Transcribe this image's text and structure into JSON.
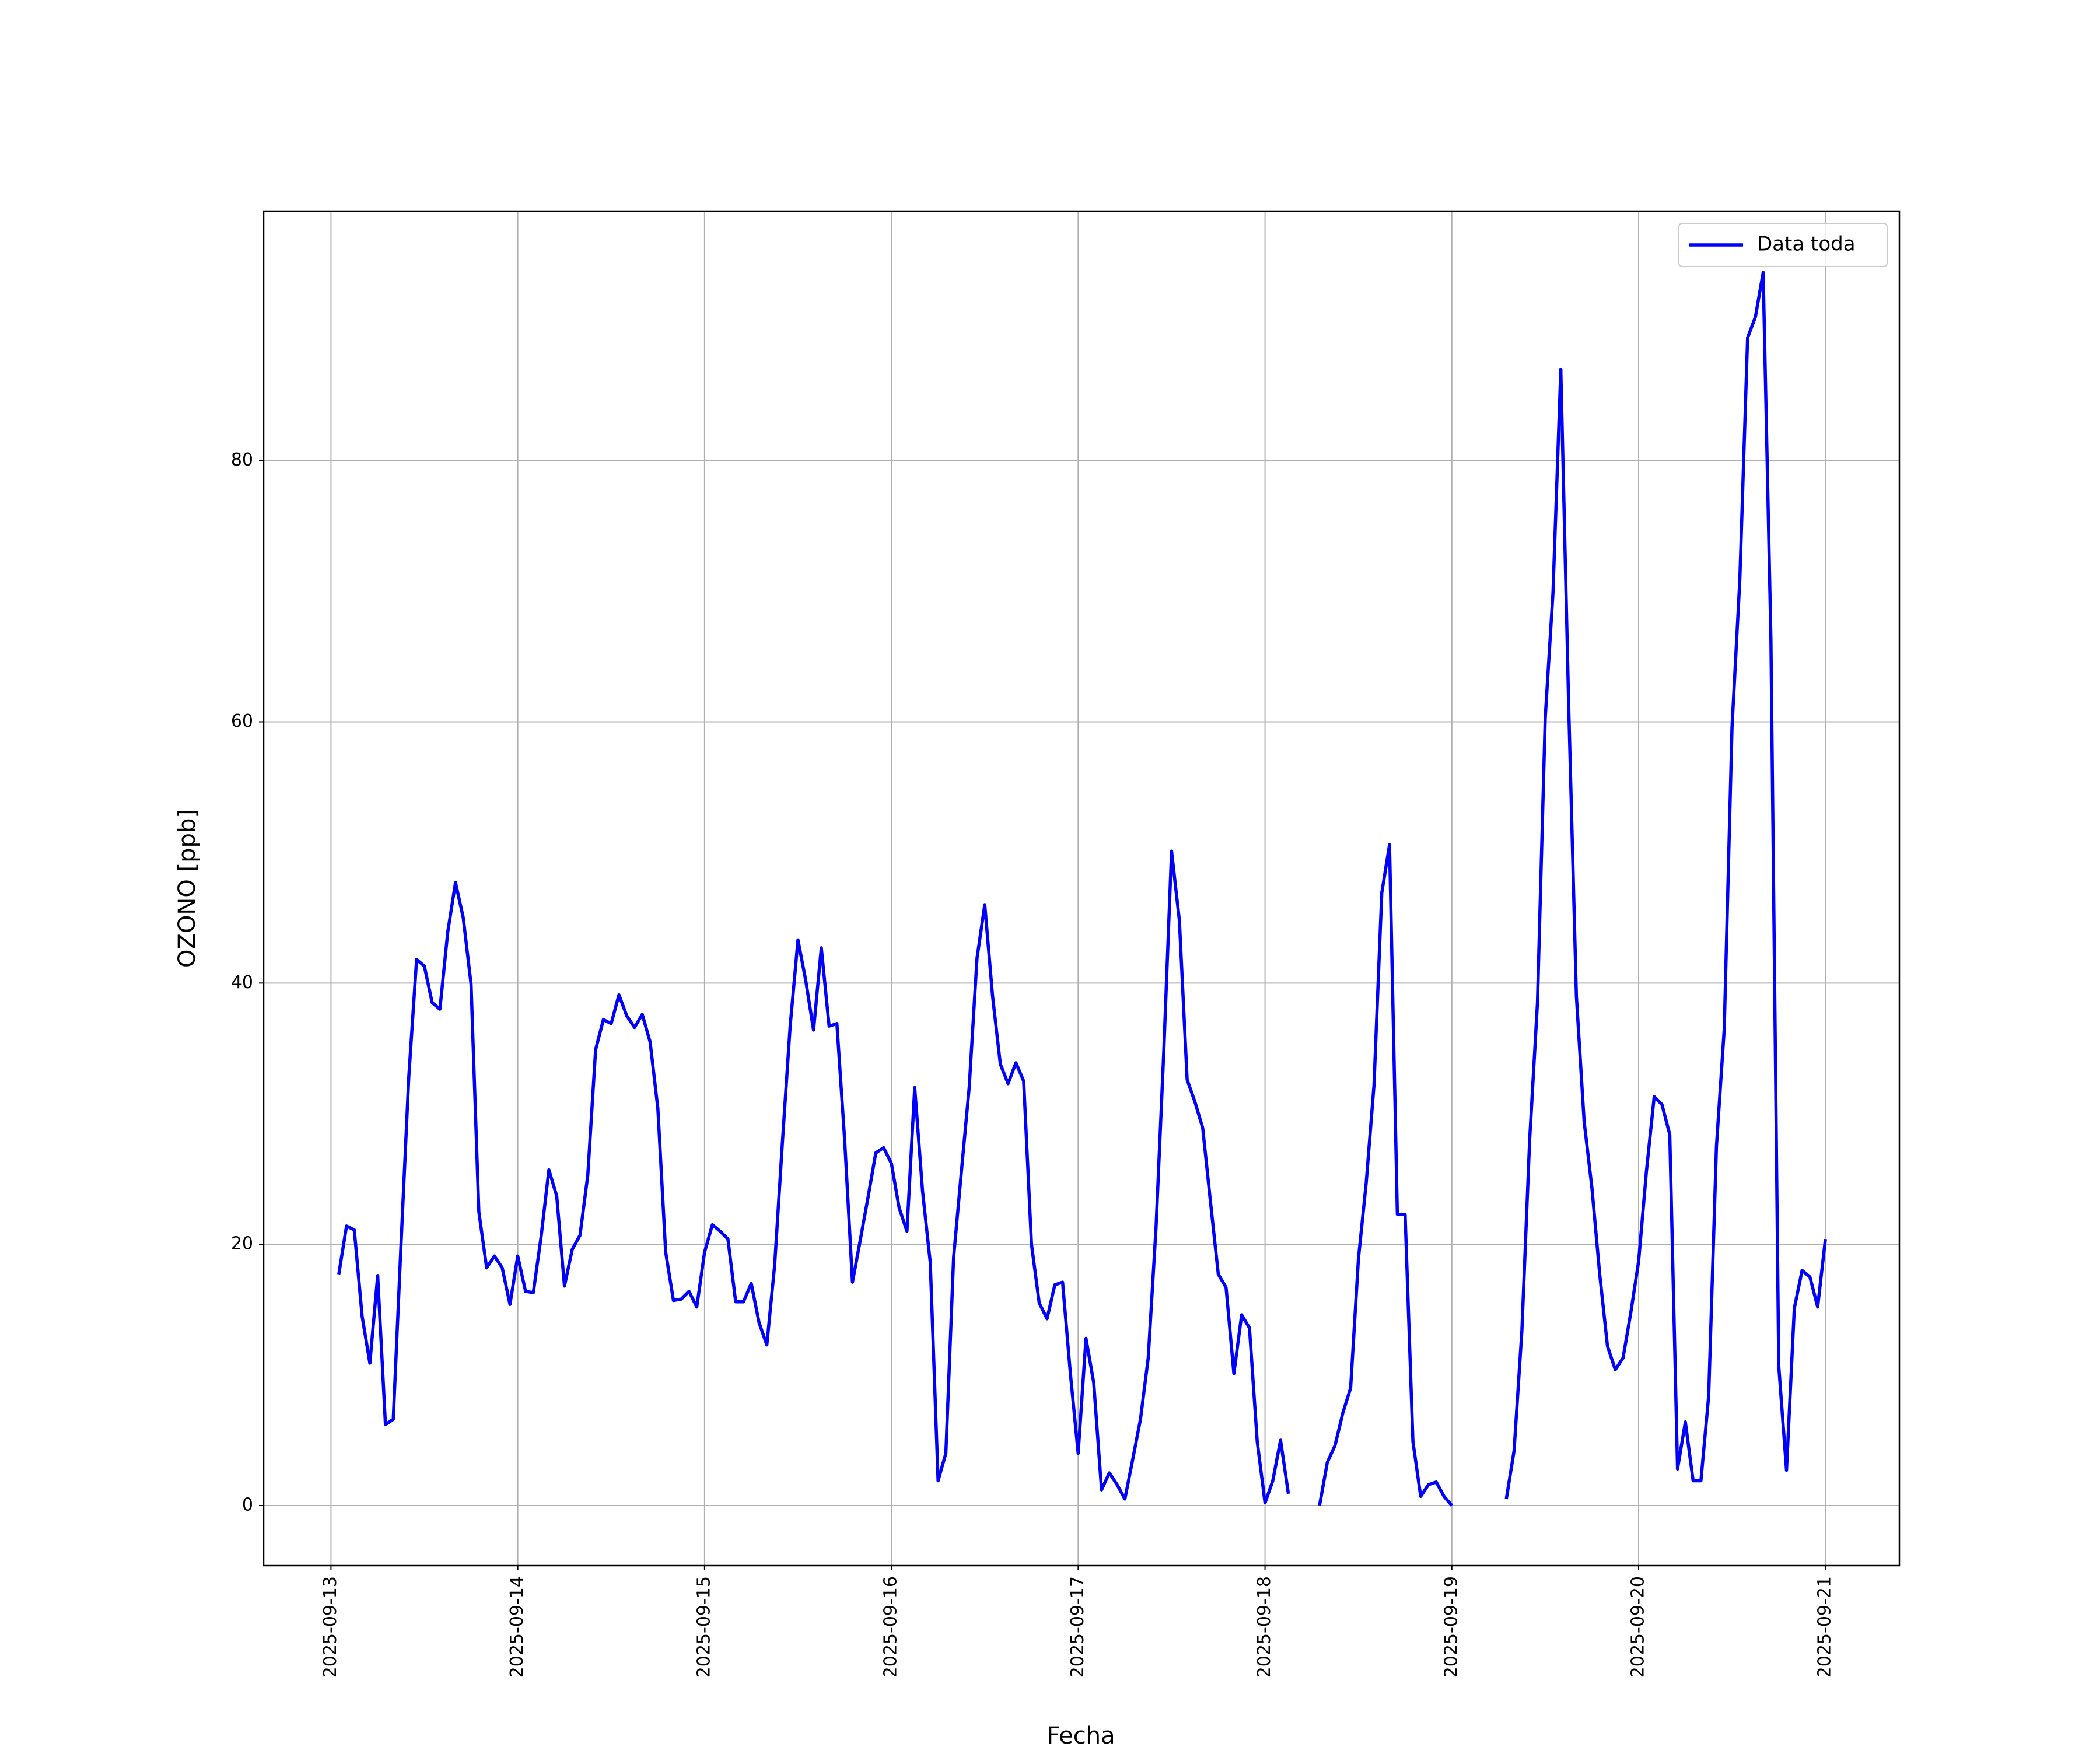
{
  "chart_data": {
    "type": "line",
    "xlabel": "Fecha",
    "ylabel": "OZONO [ppb]",
    "x": [
      "2025-09-13 01:00",
      "2025-09-13 02:00",
      "2025-09-13 03:00",
      "2025-09-13 04:00",
      "2025-09-13 05:00",
      "2025-09-13 06:00",
      "2025-09-13 07:00",
      "2025-09-13 08:00",
      "2025-09-13 09:00",
      "2025-09-13 10:00",
      "2025-09-13 11:00",
      "2025-09-13 12:00",
      "2025-09-13 13:00",
      "2025-09-13 14:00",
      "2025-09-13 15:00",
      "2025-09-13 16:00",
      "2025-09-13 17:00",
      "2025-09-13 18:00",
      "2025-09-13 19:00",
      "2025-09-13 20:00",
      "2025-09-13 21:00",
      "2025-09-13 22:00",
      "2025-09-13 23:00",
      "2025-09-14 00:00",
      "2025-09-14 01:00",
      "2025-09-14 02:00",
      "2025-09-14 03:00",
      "2025-09-14 04:00",
      "2025-09-14 05:00",
      "2025-09-14 06:00",
      "2025-09-14 07:00",
      "2025-09-14 08:00",
      "2025-09-14 09:00",
      "2025-09-14 10:00",
      "2025-09-14 11:00",
      "2025-09-14 12:00",
      "2025-09-14 13:00",
      "2025-09-14 14:00",
      "2025-09-14 15:00",
      "2025-09-14 16:00",
      "2025-09-14 17:00",
      "2025-09-14 18:00",
      "2025-09-14 19:00",
      "2025-09-14 20:00",
      "2025-09-14 21:00",
      "2025-09-14 22:00",
      "2025-09-14 23:00",
      "2025-09-15 00:00",
      "2025-09-15 01:00",
      "2025-09-15 02:00",
      "2025-09-15 03:00",
      "2025-09-15 04:00",
      "2025-09-15 05:00",
      "2025-09-15 06:00",
      "2025-09-15 07:00",
      "2025-09-15 08:00",
      "2025-09-15 09:00",
      "2025-09-15 10:00",
      "2025-09-15 11:00",
      "2025-09-15 12:00",
      "2025-09-15 13:00",
      "2025-09-15 14:00",
      "2025-09-15 15:00",
      "2025-09-15 16:00",
      "2025-09-15 17:00",
      "2025-09-15 18:00",
      "2025-09-15 19:00",
      "2025-09-15 20:00",
      "2025-09-15 21:00",
      "2025-09-15 22:00",
      "2025-09-15 23:00",
      "2025-09-16 00:00",
      "2025-09-16 01:00",
      "2025-09-16 02:00",
      "2025-09-16 03:00",
      "2025-09-16 04:00",
      "2025-09-16 05:00",
      "2025-09-16 06:00",
      "2025-09-16 07:00",
      "2025-09-16 08:00",
      "2025-09-16 09:00",
      "2025-09-16 10:00",
      "2025-09-16 11:00",
      "2025-09-16 12:00",
      "2025-09-16 13:00",
      "2025-09-16 14:00",
      "2025-09-16 15:00",
      "2025-09-16 16:00",
      "2025-09-16 17:00",
      "2025-09-16 18:00",
      "2025-09-16 19:00",
      "2025-09-16 20:00",
      "2025-09-16 21:00",
      "2025-09-16 22:00",
      "2025-09-16 23:00",
      "2025-09-17 00:00",
      "2025-09-17 01:00",
      "2025-09-17 02:00",
      "2025-09-17 03:00",
      "2025-09-17 04:00",
      "2025-09-17 05:00",
      "2025-09-17 06:00",
      "2025-09-17 07:00",
      "2025-09-17 08:00",
      "2025-09-17 09:00",
      "2025-09-17 10:00",
      "2025-09-17 11:00",
      "2025-09-17 12:00",
      "2025-09-17 13:00",
      "2025-09-17 14:00",
      "2025-09-17 15:00",
      "2025-09-17 16:00",
      "2025-09-17 17:00",
      "2025-09-17 18:00",
      "2025-09-17 19:00",
      "2025-09-17 20:00",
      "2025-09-17 21:00",
      "2025-09-17 22:00",
      "2025-09-17 23:00",
      "2025-09-18 00:00",
      "2025-09-18 01:00",
      "2025-09-18 02:00",
      "2025-09-18 03:00",
      "2025-09-18 04:00",
      "2025-09-18 05:00",
      "2025-09-18 06:00",
      "2025-09-18 07:00",
      "2025-09-18 08:00",
      "2025-09-18 09:00",
      "2025-09-18 10:00",
      "2025-09-18 11:00",
      "2025-09-18 12:00",
      "2025-09-18 13:00",
      "2025-09-18 14:00",
      "2025-09-18 15:00",
      "2025-09-18 16:00",
      "2025-09-18 17:00",
      "2025-09-18 18:00",
      "2025-09-18 19:00",
      "2025-09-18 20:00",
      "2025-09-18 21:00",
      "2025-09-18 22:00",
      "2025-09-18 23:00",
      "2025-09-19 00:00",
      "2025-09-19 01:00",
      "2025-09-19 02:00",
      "2025-09-19 03:00",
      "2025-09-19 04:00",
      "2025-09-19 05:00",
      "2025-09-19 06:00",
      "2025-09-19 07:00",
      "2025-09-19 08:00",
      "2025-09-19 09:00",
      "2025-09-19 10:00",
      "2025-09-19 11:00",
      "2025-09-19 12:00",
      "2025-09-19 13:00",
      "2025-09-19 14:00",
      "2025-09-19 15:00",
      "2025-09-19 16:00",
      "2025-09-19 17:00",
      "2025-09-19 18:00",
      "2025-09-19 19:00",
      "2025-09-19 20:00",
      "2025-09-19 21:00",
      "2025-09-19 22:00",
      "2025-09-19 23:00",
      "2025-09-20 00:00",
      "2025-09-20 01:00",
      "2025-09-20 02:00",
      "2025-09-20 03:00",
      "2025-09-20 04:00",
      "2025-09-20 05:00",
      "2025-09-20 06:00",
      "2025-09-20 07:00",
      "2025-09-20 08:00",
      "2025-09-20 09:00",
      "2025-09-20 10:00",
      "2025-09-20 11:00",
      "2025-09-20 12:00",
      "2025-09-20 13:00",
      "2025-09-20 14:00",
      "2025-09-20 15:00",
      "2025-09-20 16:00",
      "2025-09-20 17:00",
      "2025-09-20 18:00",
      "2025-09-20 19:00",
      "2025-09-20 20:00",
      "2025-09-20 21:00",
      "2025-09-20 22:00",
      "2025-09-20 23:00",
      "2025-09-21 00:00"
    ],
    "series": [
      {
        "name": "Data toda",
        "color": "#0000ff",
        "values": [
          17.7,
          21.4,
          21.1,
          14.5,
          10.9,
          17.6,
          6.2,
          6.6,
          20,
          32.8,
          41.8,
          41.3,
          38.5,
          38,
          43.9,
          47.7,
          45,
          39.9,
          22.5,
          18.2,
          19.1,
          18.2,
          15.4,
          19.1,
          16.4,
          16.3,
          20.6,
          25.7,
          23.7,
          16.8,
          19.6,
          20.7,
          25.3,
          34.9,
          37.2,
          36.9,
          39.1,
          37.5,
          36.6,
          37.6,
          35.5,
          30.4,
          19.4,
          15.7,
          15.8,
          16.4,
          15.2,
          19.4,
          21.5,
          21,
          20.4,
          15.6,
          15.6,
          17,
          14,
          12.3,
          18.4,
          27.8,
          36.7,
          43.3,
          40.2,
          36.4,
          42.7,
          36.7,
          36.9,
          28,
          17.1,
          20.3,
          23.6,
          27,
          27.4,
          26.2,
          22.8,
          21,
          32,
          24.1,
          18.6,
          1.9,
          4,
          19,
          25.6,
          32,
          41.9,
          46,
          39,
          33.8,
          32.3,
          33.9,
          32.5,
          20,
          15.5,
          14.3,
          16.9,
          17.1,
          10.1,
          4,
          12.8,
          9.4,
          1.2,
          2.5,
          1.6,
          0.5,
          3.5,
          6.6,
          11.3,
          21.3,
          34.8,
          50.1,
          44.8,
          32.6,
          30.9,
          28.9,
          23.2,
          17.7,
          16.7,
          10.1,
          14.6,
          13.6,
          4.9,
          0.2,
          1.9,
          5,
          0.9,
          null,
          null,
          null,
          0,
          3.3,
          4.6,
          7.1,
          9,
          18.9,
          24.7,
          32.2,
          46.9,
          50.6,
          22.3,
          22.3,
          4.9,
          0.7,
          1.6,
          1.8,
          0.7,
          0,
          null,
          null,
          null,
          null,
          null,
          null,
          0.5,
          4.2,
          13.4,
          28,
          38.5,
          60.3,
          69.9,
          87,
          61.6,
          39,
          29.4,
          24.3,
          17.7,
          12.2,
          10.4,
          11.3,
          14.8,
          18.7,
          25.6,
          31.3,
          30.7,
          28.4,
          2.8,
          6.4,
          1.9,
          1.9,
          8.4,
          27.5,
          36.5,
          59.6,
          70.9,
          89.4,
          91,
          94.4,
          66.3,
          10.7,
          2.7,
          15.1,
          18,
          17.5,
          15.2,
          20.4
        ]
      }
    ],
    "xlim": [
      "2025-09-12 15:21",
      "2025-09-21 09:30"
    ],
    "xticks": [
      "2025-09-13",
      "2025-09-14",
      "2025-09-15",
      "2025-09-16",
      "2025-09-17",
      "2025-09-18",
      "2025-09-19",
      "2025-09-20",
      "2025-09-21"
    ],
    "ylim": [
      -4.6,
      99.1
    ],
    "yticks": [
      0,
      20,
      40,
      60,
      80
    ],
    "grid": true,
    "legend": "upper right"
  }
}
